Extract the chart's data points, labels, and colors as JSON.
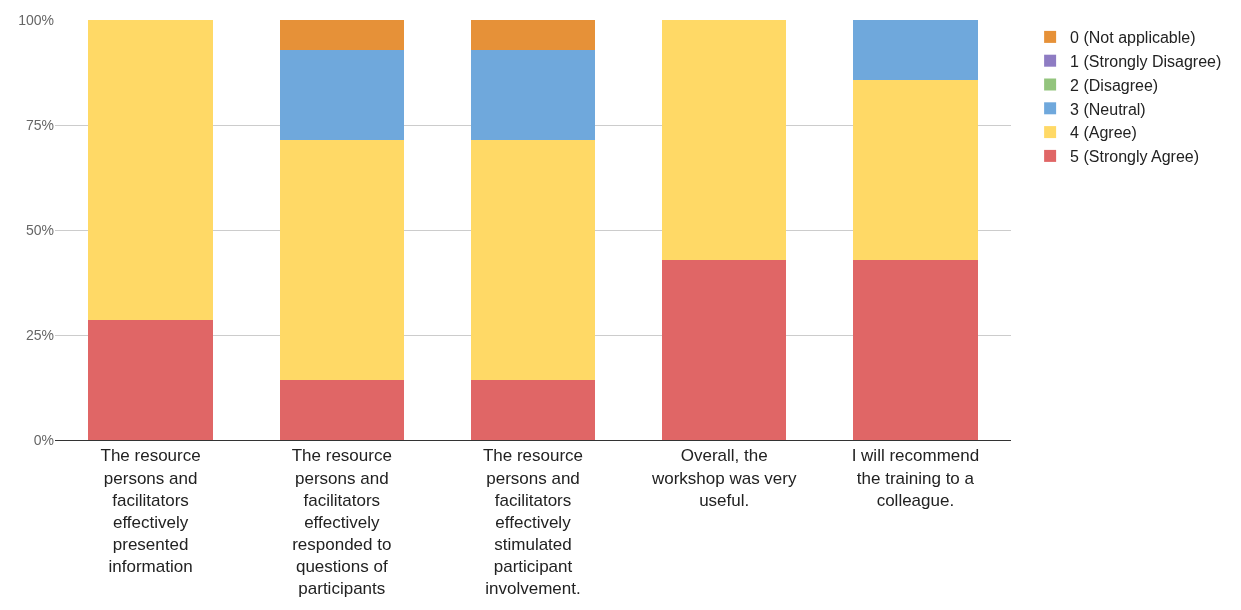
{
  "chart_data": {
    "type": "bar",
    "stacked": true,
    "categories": [
      "The resource persons and facilitators effectively presented information",
      "The resource persons and facilitators effectively responded to questions of participants",
      "The resource persons and facilitators effectively stimulated participant involvement.",
      "Overall, the workshop was very useful.",
      "I will recommend the training to a colleague."
    ],
    "series": [
      {
        "name": "5 (Strongly Agree)",
        "color": "#e06666",
        "values": [
          28.6,
          14.3,
          14.3,
          42.9,
          42.9
        ]
      },
      {
        "name": "4 (Agree)",
        "color": "#ffd966",
        "values": [
          71.4,
          57.1,
          57.1,
          57.1,
          42.9
        ]
      },
      {
        "name": "3 (Neutral)",
        "color": "#6fa8dc",
        "values": [
          0,
          21.4,
          21.4,
          0,
          14.3
        ]
      },
      {
        "name": "2 (Disagree)",
        "color": "#93c47d",
        "values": [
          0,
          0,
          0,
          0,
          0
        ]
      },
      {
        "name": "1 (Strongly Disagree)",
        "color": "#8e7cc3",
        "values": [
          0,
          0,
          0,
          0,
          0
        ]
      },
      {
        "name": "0 (Not applicable)",
        "color": "#e69138",
        "values": [
          0,
          7.1,
          7.1,
          0,
          0
        ]
      }
    ],
    "ylim": [
      0,
      100
    ],
    "yticks": [
      {
        "value": 0,
        "label": "0%"
      },
      {
        "value": 25,
        "label": "25%"
      },
      {
        "value": 50,
        "label": "50%"
      },
      {
        "value": 75,
        "label": "75%"
      },
      {
        "value": 100,
        "label": "100%"
      }
    ],
    "grid": "y",
    "legend": "top right"
  }
}
